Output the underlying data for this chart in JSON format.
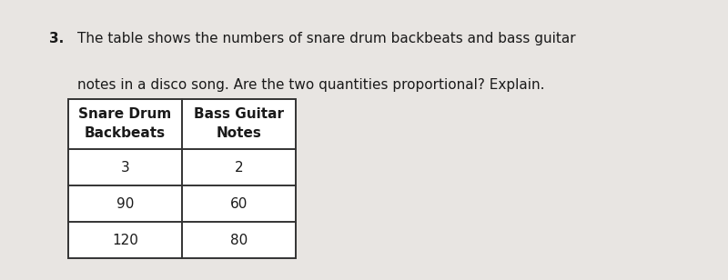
{
  "question_number": "3.",
  "question_text_line1": "The table shows the numbers of snare drum backbeats and bass guitar",
  "question_text_line2": "notes in a disco song. Are the two quantities proportional? Explain.",
  "col1_header_line1": "Snare Drum",
  "col1_header_line2": "Backbeats",
  "col2_header_line1": "Bass Guitar",
  "col2_header_line2": "Notes",
  "rows": [
    [
      "3",
      "2"
    ],
    [
      "90",
      "60"
    ],
    [
      "120",
      "80"
    ]
  ],
  "background_color": "#e8e5e2",
  "table_bg_color": "#ffffff",
  "text_color": "#1a1a1a",
  "border_color": "#333333",
  "question_fontsize": 11.0,
  "table_fontsize": 11.0,
  "header_fontsize": 11.0
}
